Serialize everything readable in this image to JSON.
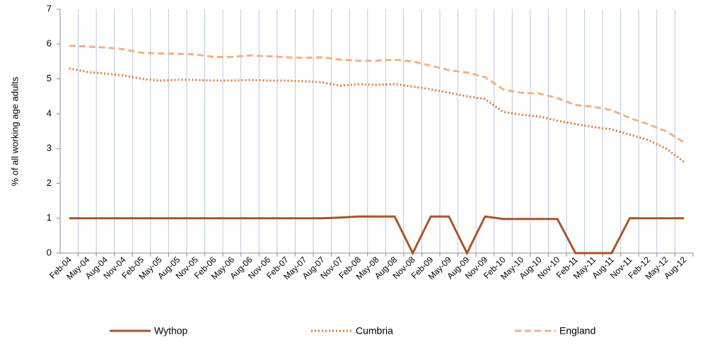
{
  "chart_data": {
    "type": "line",
    "y_label": "% of all working age adults",
    "categories": [
      "Feb-04",
      "May-04",
      "Aug-04",
      "Nov-04",
      "Feb-05",
      "May-05",
      "Aug-05",
      "Nov-05",
      "Feb-06",
      "May-06",
      "Aug-06",
      "Nov-06",
      "Feb-07",
      "May-07",
      "Aug-07",
      "Nov-07",
      "Feb-08",
      "May-08",
      "Aug-08",
      "Nov-08",
      "Feb-09",
      "May-09",
      "Aug-09",
      "Nov-09",
      "Feb-10",
      "May-10",
      "Aug-10",
      "Nov-10",
      "Feb-11",
      "May-11",
      "Aug-11",
      "Nov-11",
      "Feb-12",
      "May-12",
      "Aug-12"
    ],
    "series": [
      {
        "name": "Wythop",
        "color": "#a5562a",
        "style": "solid",
        "values": [
          1,
          1,
          1,
          1,
          1,
          1,
          1,
          1,
          1,
          1,
          1,
          1,
          1,
          1,
          1,
          1.02,
          1.05,
          1.05,
          1.05,
          0,
          1.05,
          1.05,
          0,
          1.05,
          0.98,
          0.98,
          0.98,
          0.98,
          0,
          0,
          0,
          1,
          1,
          1,
          1
        ]
      },
      {
        "name": "Cumbria",
        "color": "#e07b39",
        "style": "dotted",
        "values": [
          5.3,
          5.2,
          5.15,
          5.1,
          5.0,
          4.95,
          4.97,
          4.97,
          4.95,
          4.95,
          4.97,
          4.95,
          4.95,
          4.93,
          4.9,
          4.8,
          4.85,
          4.83,
          4.85,
          4.78,
          4.7,
          4.6,
          4.5,
          4.42,
          4.05,
          3.97,
          3.92,
          3.8,
          3.7,
          3.62,
          3.55,
          3.4,
          3.25,
          3.0,
          2.62
        ]
      },
      {
        "name": "England",
        "color": "#f4b183",
        "style": "dashed",
        "values": [
          5.95,
          5.93,
          5.9,
          5.85,
          5.75,
          5.73,
          5.72,
          5.7,
          5.63,
          5.63,
          5.67,
          5.65,
          5.62,
          5.6,
          5.62,
          5.55,
          5.52,
          5.52,
          5.55,
          5.5,
          5.38,
          5.25,
          5.18,
          5.05,
          4.7,
          4.6,
          4.58,
          4.45,
          4.25,
          4.2,
          4.1,
          3.88,
          3.7,
          3.5,
          3.18
        ]
      }
    ],
    "ylim": [
      0,
      7
    ],
    "yticks": [
      0,
      1,
      2,
      3,
      4,
      5,
      6,
      7
    ],
    "grid": "vertical",
    "legend": "bottom"
  }
}
